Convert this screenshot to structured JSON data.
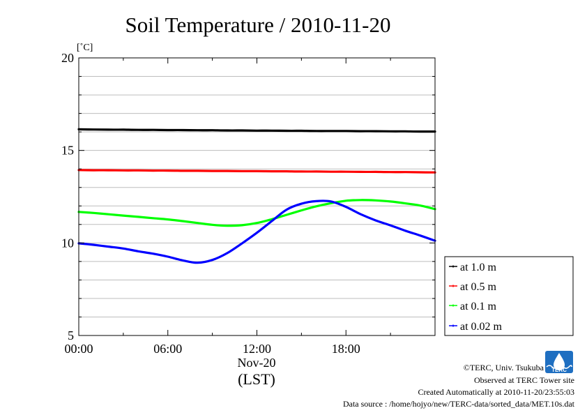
{
  "header": {
    "title": "Soil Temperature / 2010-11-20"
  },
  "chart_data": {
    "type": "line",
    "title": "Soil Temperature / 2010-11-20",
    "yunit_label": "[˚C]",
    "ylim": [
      5,
      20
    ],
    "yticks": [
      5,
      10,
      15,
      20
    ],
    "ytick_labels": [
      "5",
      "10",
      "15",
      "20"
    ],
    "xlim": [
      0,
      24
    ],
    "x_unit": "hours (LST) on Nov-20",
    "xticks": [
      0,
      6,
      12,
      18
    ],
    "xtick_labels": [
      "00:00",
      "06:00",
      "12:00",
      "18:00"
    ],
    "xdate_label": "Nov-20",
    "xlabel": "(LST)",
    "grid": true,
    "legend_position": "right-bottom",
    "x": [
      0,
      1,
      2,
      3,
      4,
      5,
      6,
      7,
      8,
      9,
      10,
      11,
      12,
      13,
      14,
      15,
      16,
      17,
      18,
      19,
      20,
      21,
      22,
      23,
      24
    ],
    "series": [
      {
        "name": "at 1.0 m",
        "color": "#000000",
        "values": [
          16.14,
          16.13,
          16.12,
          16.12,
          16.11,
          16.11,
          16.1,
          16.1,
          16.09,
          16.09,
          16.08,
          16.08,
          16.07,
          16.07,
          16.06,
          16.06,
          16.05,
          16.05,
          16.05,
          16.04,
          16.04,
          16.03,
          16.03,
          16.02,
          16.02
        ]
      },
      {
        "name": "at 0.5 m",
        "color": "#ff0000",
        "values": [
          13.94,
          13.93,
          13.93,
          13.92,
          13.92,
          13.91,
          13.91,
          13.9,
          13.9,
          13.89,
          13.89,
          13.88,
          13.88,
          13.87,
          13.87,
          13.86,
          13.86,
          13.85,
          13.85,
          13.84,
          13.84,
          13.83,
          13.83,
          13.82,
          13.81
        ]
      },
      {
        "name": "at 0.1 m",
        "color": "#00ff00",
        "values": [
          11.68,
          11.62,
          11.55,
          11.48,
          11.41,
          11.34,
          11.27,
          11.18,
          11.08,
          10.98,
          10.93,
          10.96,
          11.08,
          11.28,
          11.52,
          11.76,
          11.98,
          12.15,
          12.28,
          12.32,
          12.3,
          12.24,
          12.14,
          12.02,
          11.83
        ]
      },
      {
        "name": "at 0.02 m",
        "color": "#0000ff",
        "values": [
          9.98,
          9.9,
          9.8,
          9.7,
          9.55,
          9.42,
          9.26,
          9.06,
          8.93,
          9.08,
          9.45,
          9.98,
          10.55,
          11.18,
          11.8,
          12.12,
          12.26,
          12.24,
          11.95,
          11.55,
          11.22,
          10.95,
          10.66,
          10.4,
          10.12
        ]
      }
    ]
  },
  "footer": {
    "logo_text": "TERC",
    "copyright": "©TERC, Univ. Tsukuba",
    "observed": "Observed at TERC Tower site",
    "created": "Created Automatically at 2010-11-20/23:55:03",
    "source": "Data source : /home/hojyo/new/TERC-data/sorted_data/MET.10s.dat"
  }
}
